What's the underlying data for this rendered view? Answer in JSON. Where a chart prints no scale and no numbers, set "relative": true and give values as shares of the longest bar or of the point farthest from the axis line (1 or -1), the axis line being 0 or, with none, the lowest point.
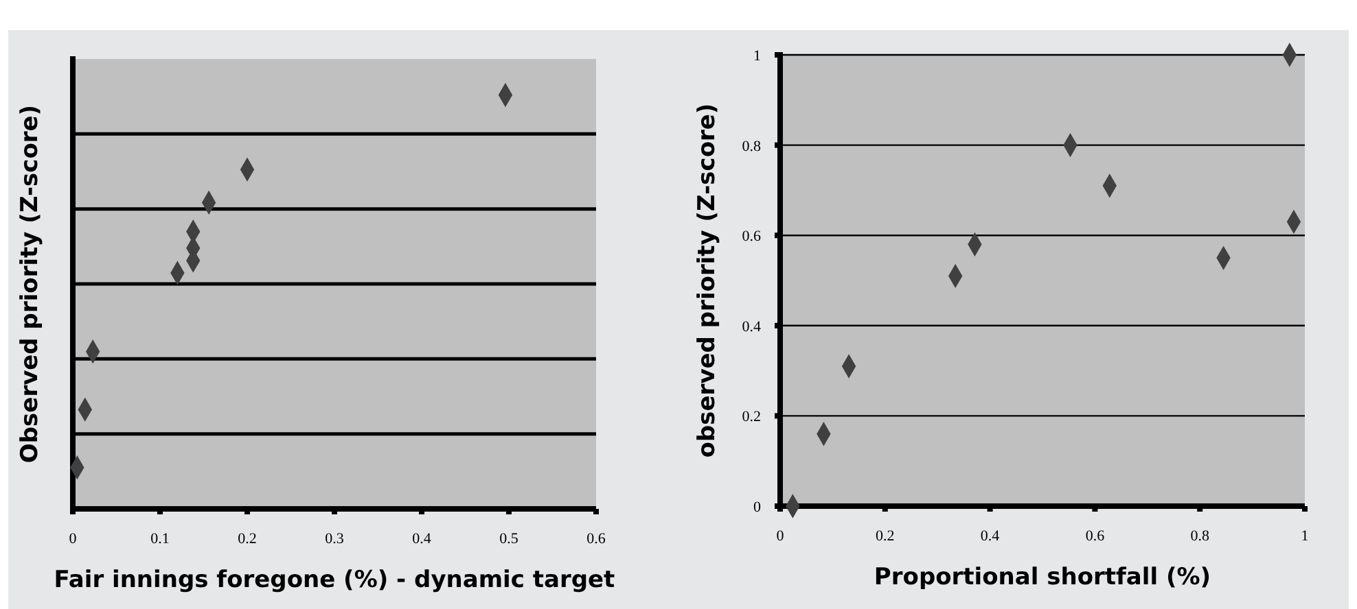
{
  "chart_data": [
    {
      "type": "scatter",
      "xlabel": "Fair innings foregone (%) - dynamic target",
      "ylabel": "Observed priority (Z-score)",
      "relative": true,
      "grid": "y",
      "marker": "diamond",
      "tick_labels": "x",
      "xlim": [
        0,
        0.6
      ],
      "xticks": [
        0,
        0.1,
        0.2,
        0.3,
        0.4,
        0.5,
        0.6
      ],
      "series": [
        {
          "color": "#404040",
          "x": [
            0.496,
            0.2,
            0.156,
            0.138,
            0.138,
            0.138,
            0.12,
            0.023,
            0.014,
            0.005
          ],
          "values": [
            1,
            0.82,
            0.74,
            0.67,
            0.63,
            0.6,
            0.57,
            0.38,
            0.24,
            0.1
          ]
        }
      ]
    },
    {
      "type": "scatter",
      "xlabel": "Proportional shortfall (%)",
      "ylabel": "observed priority (Z-score)",
      "grid": "y",
      "marker": "diamond",
      "xlim": [
        0,
        1
      ],
      "xticks": [
        0,
        0.2,
        0.4,
        0.6,
        0.8,
        1
      ],
      "ylim": [
        0,
        1
      ],
      "yticks": [
        0,
        0.2,
        0.4,
        0.6,
        0.8,
        1
      ],
      "series": [
        {
          "color": "#404040",
          "x": [
            0.024,
            0.083,
            0.131,
            0.334,
            0.371,
            0.553,
            0.628,
            0.845,
            0.971,
            0.979
          ],
          "values": [
            0,
            0.16,
            0.31,
            0.51,
            0.58,
            0.8,
            0.71,
            0.55,
            1,
            0.63
          ]
        }
      ]
    }
  ]
}
